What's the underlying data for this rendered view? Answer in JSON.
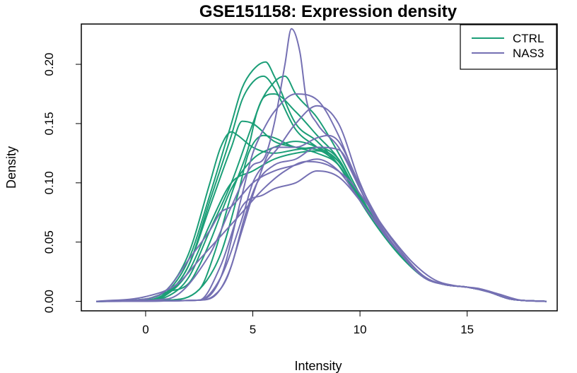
{
  "chart_data": {
    "type": "line",
    "title": "GSE151158: Expression density",
    "xlabel": "Intensity",
    "ylabel": "Density",
    "xlim": [
      -3,
      19.2
    ],
    "ylim": [
      -0.008,
      0.234
    ],
    "x_ticks": [
      0,
      5,
      10,
      15
    ],
    "x_tick_labels": [
      "0",
      "5",
      "10",
      "15"
    ],
    "y_ticks": [
      0.0,
      0.05,
      0.1,
      0.15,
      0.2
    ],
    "y_tick_labels": [
      "0.00",
      "0.05",
      "0.10",
      "0.15",
      "0.20"
    ],
    "legend": {
      "position": "top-right",
      "entries": [
        {
          "label": "CTRL",
          "color": "#1b9e77"
        },
        {
          "label": "NAS3",
          "color": "#7570b3"
        }
      ]
    },
    "series": [
      {
        "name": "CTRL",
        "color": "#1b9e77",
        "x": [
          -2.3,
          0,
          1,
          2,
          3,
          4,
          4.5,
          5,
          5.6,
          6,
          7,
          8,
          9,
          10,
          11,
          12,
          13,
          14,
          15,
          16,
          17,
          18.7
        ],
        "values": [
          0,
          0.001,
          0.008,
          0.035,
          0.09,
          0.15,
          0.18,
          0.195,
          0.202,
          0.19,
          0.15,
          0.135,
          0.115,
          0.085,
          0.06,
          0.038,
          0.02,
          0.014,
          0.012,
          0.008,
          0.002,
          0
        ]
      },
      {
        "name": "CTRL",
        "color": "#1b9e77",
        "x": [
          -2.3,
          0,
          1,
          2,
          3,
          4,
          4.5,
          5,
          5.5,
          6,
          7,
          8,
          9,
          10,
          11,
          12,
          13,
          14,
          15,
          16,
          17,
          18.7
        ],
        "values": [
          0,
          0.001,
          0.007,
          0.03,
          0.085,
          0.14,
          0.17,
          0.185,
          0.19,
          0.18,
          0.145,
          0.13,
          0.115,
          0.085,
          0.058,
          0.037,
          0.02,
          0.014,
          0.012,
          0.008,
          0.002,
          0
        ]
      },
      {
        "name": "CTRL",
        "color": "#1b9e77",
        "x": [
          -2.3,
          0,
          1,
          2,
          3,
          3.5,
          4,
          4.3,
          5,
          6,
          7,
          8,
          9,
          10,
          11,
          12,
          13,
          14,
          15,
          16,
          17,
          18.7
        ],
        "values": [
          0,
          0.002,
          0.01,
          0.04,
          0.1,
          0.13,
          0.143,
          0.14,
          0.13,
          0.125,
          0.128,
          0.13,
          0.12,
          0.085,
          0.06,
          0.038,
          0.02,
          0.014,
          0.012,
          0.008,
          0.002,
          0
        ]
      },
      {
        "name": "CTRL",
        "color": "#1b9e77",
        "x": [
          -2.3,
          0,
          1,
          2,
          3,
          4,
          4.5,
          5,
          6,
          7,
          8,
          9,
          10,
          11,
          12,
          13,
          14,
          15,
          16,
          17,
          18.7
        ],
        "values": [
          0,
          0.001,
          0.006,
          0.03,
          0.08,
          0.13,
          0.152,
          0.15,
          0.135,
          0.13,
          0.125,
          0.115,
          0.085,
          0.06,
          0.038,
          0.02,
          0.014,
          0.012,
          0.008,
          0.002,
          0
        ]
      },
      {
        "name": "CTRL",
        "color": "#1b9e77",
        "x": [
          -2.3,
          0,
          1,
          2,
          3,
          4,
          5,
          5.5,
          6,
          7,
          8,
          9,
          10,
          11,
          12,
          13,
          14,
          15,
          16,
          17,
          18.7
        ],
        "values": [
          0,
          0.001,
          0.004,
          0.02,
          0.06,
          0.1,
          0.15,
          0.172,
          0.175,
          0.16,
          0.14,
          0.12,
          0.085,
          0.058,
          0.036,
          0.02,
          0.014,
          0.012,
          0.008,
          0.002,
          0
        ]
      },
      {
        "name": "CTRL",
        "color": "#1b9e77",
        "x": [
          -2.3,
          0,
          1,
          2,
          2.5,
          3,
          4,
          5,
          6,
          7,
          8,
          9,
          10,
          11,
          12,
          13,
          14,
          15,
          16,
          17,
          18.7
        ],
        "values": [
          0,
          0.002,
          0.008,
          0.015,
          0.03,
          0.05,
          0.095,
          0.12,
          0.13,
          0.135,
          0.13,
          0.118,
          0.086,
          0.06,
          0.037,
          0.02,
          0.014,
          0.012,
          0.008,
          0.002,
          0
        ]
      },
      {
        "name": "CTRL",
        "color": "#1b9e77",
        "x": [
          -2.3,
          0,
          1,
          2,
          3,
          4,
          5,
          6,
          7,
          8,
          9,
          10,
          11,
          12,
          13,
          14,
          15,
          16,
          17,
          18.7
        ],
        "values": [
          0,
          0.001,
          0.006,
          0.025,
          0.065,
          0.1,
          0.11,
          0.12,
          0.125,
          0.127,
          0.118,
          0.088,
          0.06,
          0.038,
          0.02,
          0.014,
          0.012,
          0.008,
          0.002,
          0
        ]
      },
      {
        "name": "CTRL",
        "color": "#1b9e77",
        "x": [
          -2.3,
          1,
          2.5,
          3.2,
          4,
          4.8,
          5.2,
          6,
          6.5,
          7,
          8,
          9,
          10,
          11,
          12,
          13,
          14,
          15,
          16,
          17,
          18.7
        ],
        "values": [
          0,
          0.001,
          0.01,
          0.04,
          0.09,
          0.13,
          0.16,
          0.185,
          0.19,
          0.175,
          0.155,
          0.125,
          0.09,
          0.06,
          0.037,
          0.02,
          0.014,
          0.012,
          0.008,
          0.002,
          0
        ]
      },
      {
        "name": "CTRL",
        "color": "#1b9e77",
        "x": [
          -2.3,
          1,
          2.5,
          3.5,
          4.3,
          4.8,
          5.5,
          6,
          7,
          8,
          9,
          10,
          11,
          12,
          13,
          14,
          15,
          16,
          17,
          18.7
        ],
        "values": [
          0,
          0.001,
          0.01,
          0.04,
          0.09,
          0.125,
          0.14,
          0.138,
          0.13,
          0.128,
          0.115,
          0.085,
          0.058,
          0.036,
          0.02,
          0.014,
          0.012,
          0.008,
          0.002,
          0
        ]
      },
      {
        "name": "NAS3",
        "color": "#7570b3",
        "x": [
          -2.3,
          1,
          3,
          4,
          5,
          5.5,
          6,
          6.5,
          6.8,
          7.2,
          7.5,
          8,
          9,
          10,
          11,
          12,
          13,
          14,
          15,
          16,
          17,
          18.7
        ],
        "values": [
          0,
          0.002,
          0.04,
          0.08,
          0.115,
          0.12,
          0.15,
          0.2,
          0.23,
          0.21,
          0.17,
          0.15,
          0.13,
          0.095,
          0.06,
          0.038,
          0.02,
          0.014,
          0.012,
          0.008,
          0.002,
          0
        ]
      },
      {
        "name": "NAS3",
        "color": "#7570b3",
        "x": [
          -2.3,
          2.5,
          3.5,
          4.5,
          5,
          5.5,
          6,
          7,
          8,
          9,
          10,
          11,
          12,
          13,
          14,
          15,
          16,
          17,
          18.7
        ],
        "values": [
          0,
          0.001,
          0.02,
          0.09,
          0.125,
          0.145,
          0.16,
          0.175,
          0.17,
          0.14,
          0.095,
          0.062,
          0.038,
          0.02,
          0.014,
          0.012,
          0.008,
          0.002,
          0
        ]
      },
      {
        "name": "NAS3",
        "color": "#7570b3",
        "x": [
          -2.3,
          0,
          1,
          2,
          3,
          3.5,
          4,
          4.5,
          5,
          6,
          7,
          8,
          9,
          10,
          11,
          12,
          13,
          14,
          15,
          16,
          17,
          18.7
        ],
        "values": [
          0,
          0.002,
          0.01,
          0.035,
          0.06,
          0.075,
          0.08,
          0.09,
          0.1,
          0.11,
          0.115,
          0.12,
          0.11,
          0.085,
          0.06,
          0.038,
          0.02,
          0.014,
          0.012,
          0.008,
          0.002,
          0
        ]
      },
      {
        "name": "NAS3",
        "color": "#7570b3",
        "x": [
          -2.3,
          2.5,
          3.2,
          3.8,
          4.5,
          5.2,
          6,
          7,
          8,
          8.5,
          9,
          10,
          11,
          12,
          13,
          14,
          15,
          16,
          17,
          18.7
        ],
        "values": [
          0,
          0.001,
          0.005,
          0.02,
          0.06,
          0.1,
          0.13,
          0.13,
          0.138,
          0.14,
          0.135,
          0.098,
          0.065,
          0.04,
          0.021,
          0.014,
          0.012,
          0.008,
          0.002,
          0
        ]
      },
      {
        "name": "NAS3",
        "color": "#7570b3",
        "x": [
          -2.3,
          2.5,
          3.3,
          4,
          4.6,
          5.2,
          6,
          7,
          8,
          9,
          10,
          11,
          12,
          13,
          14,
          15,
          16,
          17,
          18.7
        ],
        "values": [
          0,
          0.001,
          0.006,
          0.03,
          0.07,
          0.1,
          0.115,
          0.12,
          0.13,
          0.128,
          0.095,
          0.062,
          0.038,
          0.02,
          0.014,
          0.012,
          0.008,
          0.002,
          0
        ]
      },
      {
        "name": "NAS3",
        "color": "#7570b3",
        "x": [
          -2.3,
          2.5,
          3.5,
          4.5,
          5,
          5.5,
          6.2,
          7,
          8,
          9,
          10,
          11,
          12,
          13,
          14,
          15,
          16,
          17,
          18.7
        ],
        "values": [
          0,
          0.001,
          0.02,
          0.07,
          0.1,
          0.115,
          0.13,
          0.15,
          0.165,
          0.15,
          0.1,
          0.063,
          0.038,
          0.02,
          0.014,
          0.012,
          0.008,
          0.002,
          0
        ]
      },
      {
        "name": "NAS3",
        "color": "#7570b3",
        "x": [
          -2.3,
          2.5,
          3.5,
          4.5,
          5.5,
          6,
          7,
          8,
          9,
          10,
          11,
          12,
          13,
          14,
          15,
          16,
          17,
          18.7
        ],
        "values": [
          0,
          0.001,
          0.03,
          0.08,
          0.09,
          0.095,
          0.1,
          0.11,
          0.105,
          0.085,
          0.06,
          0.038,
          0.02,
          0.014,
          0.012,
          0.008,
          0.002,
          0
        ]
      },
      {
        "name": "NAS3",
        "color": "#7570b3",
        "x": [
          -2.3,
          0,
          1.5,
          2.5,
          3.5,
          4.5,
          5.5,
          6.5,
          7.5,
          8.5,
          9.5,
          10.5,
          11.5,
          12.5,
          13.5,
          14.5,
          15.5,
          16.5,
          17.5,
          18.7
        ],
        "values": [
          0,
          0.004,
          0.015,
          0.035,
          0.055,
          0.075,
          0.095,
          0.11,
          0.118,
          0.115,
          0.102,
          0.078,
          0.053,
          0.032,
          0.018,
          0.013,
          0.011,
          0.006,
          0.001,
          0
        ]
      }
    ]
  }
}
